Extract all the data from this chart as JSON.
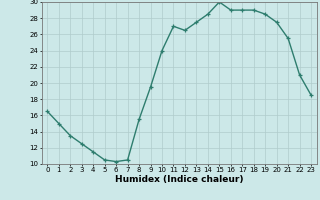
{
  "x": [
    0,
    1,
    2,
    3,
    4,
    5,
    6,
    7,
    8,
    9,
    10,
    11,
    12,
    13,
    14,
    15,
    16,
    17,
    18,
    19,
    20,
    21,
    22,
    23
  ],
  "y": [
    16.5,
    15.0,
    13.5,
    12.5,
    11.5,
    10.5,
    10.3,
    10.5,
    15.5,
    19.5,
    24.0,
    27.0,
    26.5,
    27.5,
    28.5,
    30.0,
    29.0,
    29.0,
    29.0,
    28.5,
    27.5,
    25.5,
    21.0,
    18.5
  ],
  "xlabel": "Humidex (Indice chaleur)",
  "ylim": [
    10,
    30
  ],
  "xlim_left": -0.5,
  "xlim_right": 23.5,
  "yticks": [
    10,
    12,
    14,
    16,
    18,
    20,
    22,
    24,
    26,
    28,
    30
  ],
  "xticks": [
    0,
    1,
    2,
    3,
    4,
    5,
    6,
    7,
    8,
    9,
    10,
    11,
    12,
    13,
    14,
    15,
    16,
    17,
    18,
    19,
    20,
    21,
    22,
    23
  ],
  "line_color": "#2e7d6e",
  "bg_color": "#cce8e8",
  "grid_color": "#b0cccc",
  "marker": "+",
  "marker_size": 3.5,
  "linewidth": 1.0,
  "tick_fontsize": 5.0,
  "xlabel_fontsize": 6.5
}
